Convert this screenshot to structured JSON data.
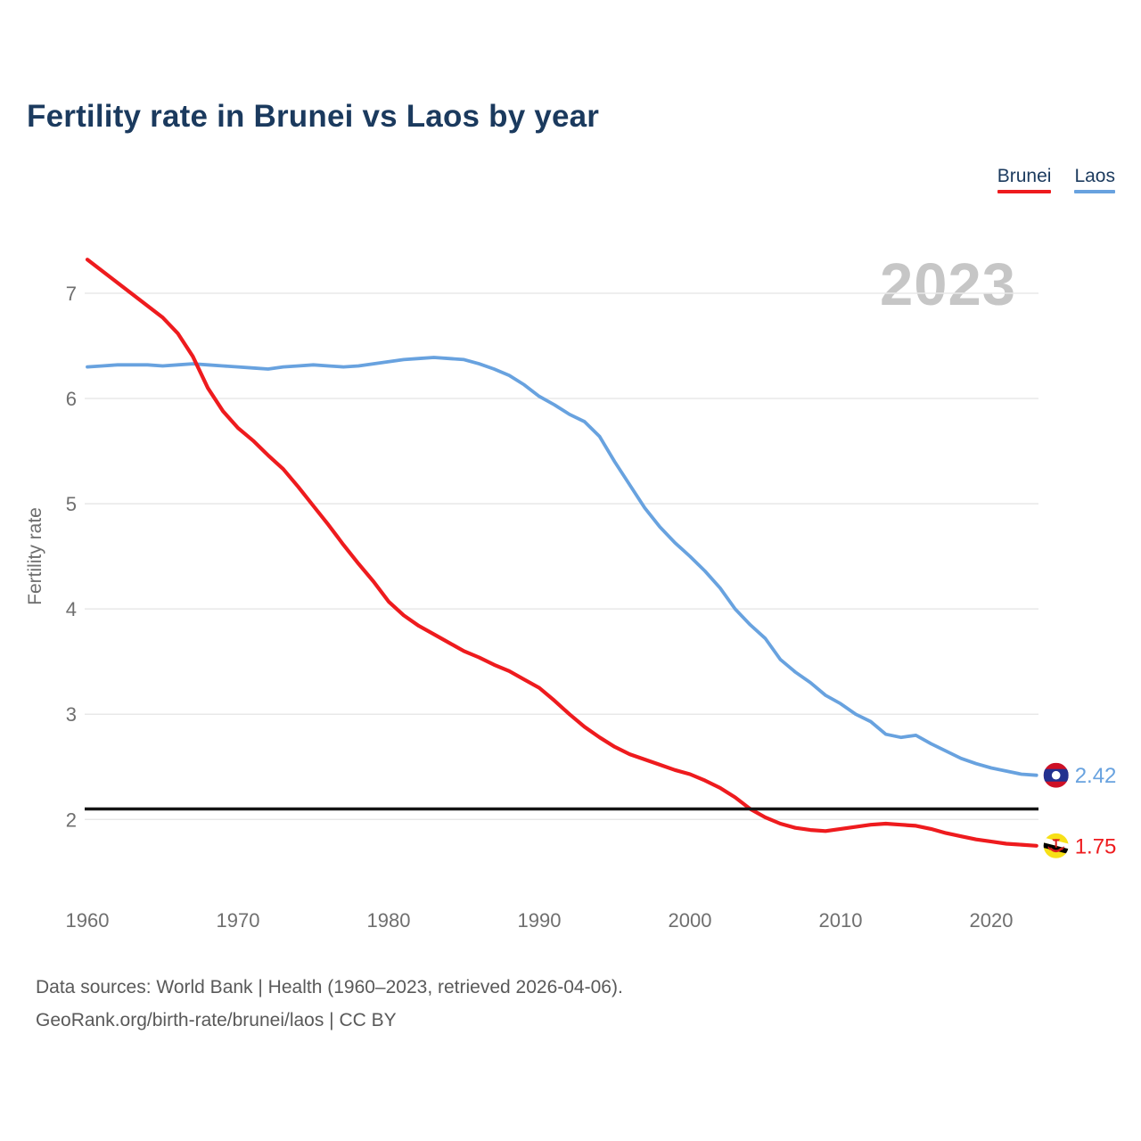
{
  "page": {
    "title": "Fertility rate in Brunei vs Laos by year"
  },
  "legend": {
    "items": [
      {
        "label": "Brunei",
        "color": "#ee1b1e"
      },
      {
        "label": "Laos",
        "color": "#68a2df"
      }
    ]
  },
  "watermark": "2023",
  "footer": {
    "line1": "Data sources: World Bank | Health (1960–2023, retrieved 2026-04-06).",
    "line2": "GeoRank.org/birth-rate/brunei/laos | CC BY"
  },
  "chart_data": {
    "type": "line",
    "title": "Fertility rate in Brunei vs Laos by year",
    "xlabel": "",
    "ylabel": "Fertility rate",
    "xlim": [
      1960,
      2023
    ],
    "ylim": [
      1.6,
      7.45
    ],
    "grid": true,
    "legend_position": "top-right",
    "x_ticks": [
      1960,
      1970,
      1980,
      1990,
      2000,
      2010,
      2020
    ],
    "y_ticks": [
      7,
      6,
      5,
      4,
      3,
      2
    ],
    "reference_line": {
      "value": 2.1,
      "color": "#141414"
    },
    "x": [
      1960,
      1961,
      1962,
      1963,
      1964,
      1965,
      1966,
      1967,
      1968,
      1969,
      1970,
      1971,
      1972,
      1973,
      1974,
      1975,
      1976,
      1977,
      1978,
      1979,
      1980,
      1981,
      1982,
      1983,
      1984,
      1985,
      1986,
      1987,
      1988,
      1989,
      1990,
      1991,
      1992,
      1993,
      1994,
      1995,
      1996,
      1997,
      1998,
      1999,
      2000,
      2001,
      2002,
      2003,
      2004,
      2005,
      2006,
      2007,
      2008,
      2009,
      2010,
      2011,
      2012,
      2013,
      2014,
      2015,
      2016,
      2017,
      2018,
      2019,
      2020,
      2021,
      2022,
      2023
    ],
    "series": [
      {
        "name": "Brunei",
        "color": "#ee1b1e",
        "end_label": "1.75",
        "end_value": 1.75,
        "flag": "brunei",
        "values": [
          7.32,
          7.21,
          7.1,
          6.99,
          6.88,
          6.77,
          6.62,
          6.4,
          6.1,
          5.88,
          5.72,
          5.6,
          5.46,
          5.33,
          5.16,
          4.98,
          4.8,
          4.61,
          4.43,
          4.26,
          4.07,
          3.94,
          3.84,
          3.76,
          3.68,
          3.6,
          3.54,
          3.47,
          3.41,
          3.33,
          3.25,
          3.13,
          3.0,
          2.88,
          2.78,
          2.69,
          2.62,
          2.57,
          2.52,
          2.47,
          2.43,
          2.37,
          2.3,
          2.21,
          2.1,
          2.02,
          1.96,
          1.92,
          1.9,
          1.89,
          1.91,
          1.93,
          1.95,
          1.96,
          1.95,
          1.94,
          1.91,
          1.87,
          1.84,
          1.81,
          1.79,
          1.77,
          1.76,
          1.75
        ]
      },
      {
        "name": "Laos",
        "color": "#68a2df",
        "end_label": "2.42",
        "end_value": 2.42,
        "flag": "laos",
        "values": [
          6.3,
          6.31,
          6.32,
          6.32,
          6.32,
          6.31,
          6.32,
          6.33,
          6.32,
          6.31,
          6.3,
          6.29,
          6.28,
          6.3,
          6.31,
          6.32,
          6.31,
          6.3,
          6.31,
          6.33,
          6.35,
          6.37,
          6.38,
          6.39,
          6.38,
          6.37,
          6.33,
          6.28,
          6.22,
          6.13,
          6.02,
          5.94,
          5.85,
          5.78,
          5.64,
          5.4,
          5.18,
          4.96,
          4.78,
          4.63,
          4.5,
          4.36,
          4.2,
          4.0,
          3.85,
          3.72,
          3.52,
          3.4,
          3.3,
          3.18,
          3.1,
          3.0,
          2.93,
          2.81,
          2.78,
          2.8,
          2.72,
          2.65,
          2.58,
          2.53,
          2.49,
          2.46,
          2.43,
          2.42
        ]
      }
    ]
  }
}
